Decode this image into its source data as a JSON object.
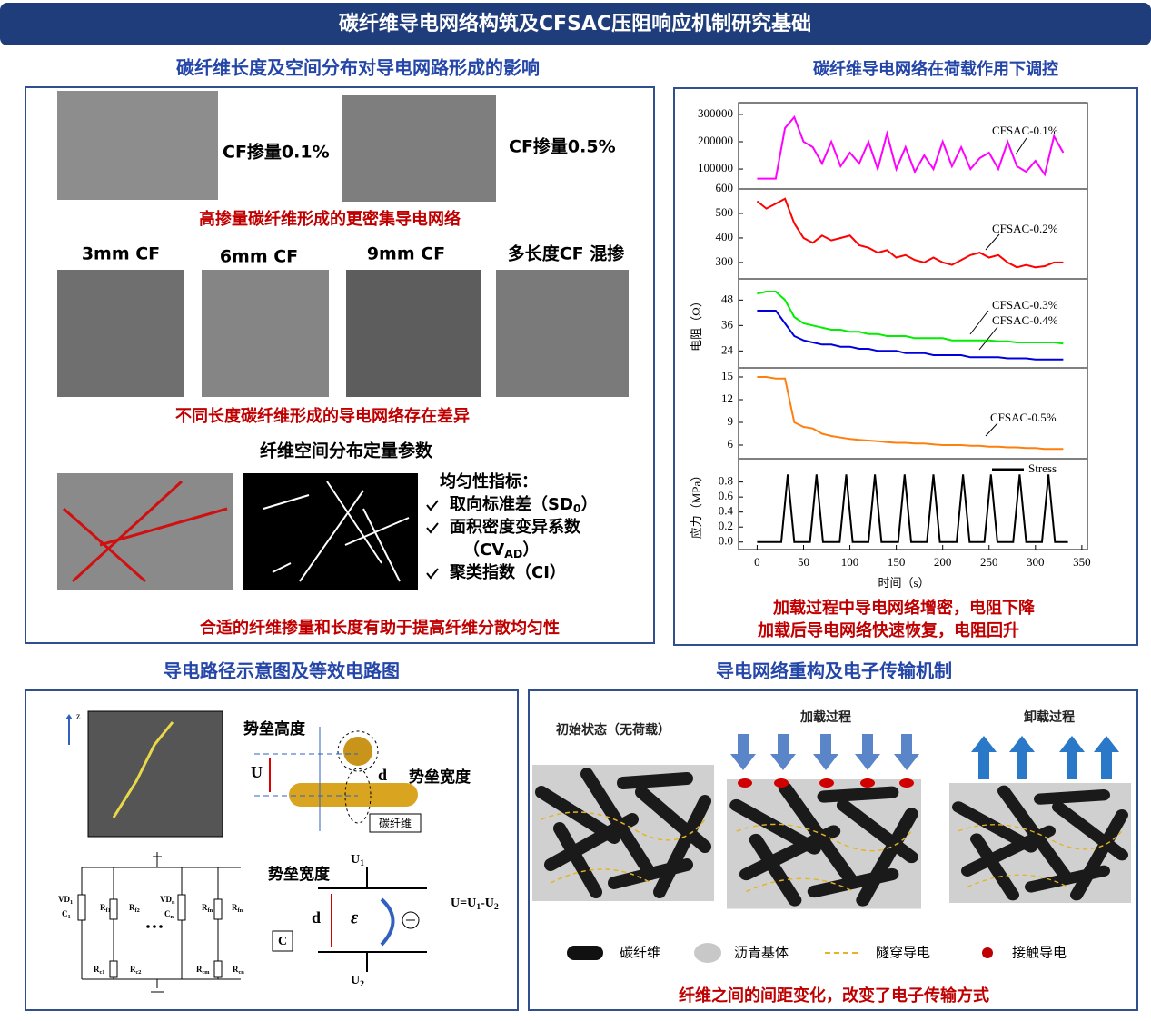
{
  "header": {
    "title": "碳纤维导电网络构筑及CFSAC压阻响应机制研究基础"
  },
  "panel_a": {
    "title": "碳纤维长度及空间分布对导电网路形成的影响",
    "dosage_labels": [
      "CF掺量0.1%",
      "CF掺量0.5%"
    ],
    "caption_dosage": "高掺量碳纤维形成的更密集导电网络",
    "length_labels": [
      "3mm CF",
      "6mm CF",
      "9mm CF",
      "多长度CF 混掺"
    ],
    "caption_length": "不同长度碳纤维形成的导电网络存在差异",
    "subtitle": "纤维空间分布定量参数",
    "index_title": "均匀性指标：",
    "indices": [
      {
        "text": "取向标准差（SD",
        "sub": "0",
        "tail": "）"
      },
      {
        "text": "面积密度变异系数",
        "sub": "",
        "tail": ""
      },
      {
        "text": "（CV",
        "sub": "AD",
        "tail": "）"
      },
      {
        "text": "聚类指数（CI）",
        "sub": "",
        "tail": ""
      }
    ],
    "caption_uniform": "合适的纤维掺量和长度有助于提高纤维分散均匀性"
  },
  "panel_b": {
    "title": "碳纤维导电网络在荷载作用下调控",
    "captions": [
      "加载过程中导电网络增密，电阻下降",
      "加载后导电网络快速恢复，电阻回升"
    ]
  },
  "chart_data": [
    {
      "type": "line",
      "x": [
        0,
        10,
        20,
        30,
        40,
        50,
        60,
        70,
        80,
        90,
        100,
        110,
        120,
        130,
        140,
        150,
        160,
        170,
        180,
        190,
        200,
        210,
        220,
        230,
        240,
        250,
        260,
        270,
        280,
        290,
        300,
        310,
        320,
        330
      ],
      "xlim": [
        -20,
        356
      ],
      "ylim": [
        27000,
        343000
      ],
      "yticks": [
        100000,
        200000,
        300000
      ],
      "series": [
        {
          "name": "CFSAC-0.1%",
          "color": "#ff00ff",
          "values": [
            65000,
            65000,
            65000,
            250000,
            290000,
            200000,
            180000,
            120000,
            200000,
            110000,
            160000,
            120000,
            200000,
            100000,
            230000,
            100000,
            180000,
            90000,
            150000,
            100000,
            200000,
            110000,
            180000,
            100000,
            140000,
            160000,
            100000,
            200000,
            110000,
            90000,
            130000,
            80000,
            220000,
            160000
          ]
        }
      ]
    },
    {
      "type": "line",
      "x": [
        0,
        10,
        20,
        30,
        40,
        50,
        60,
        70,
        80,
        90,
        100,
        110,
        120,
        130,
        140,
        150,
        160,
        170,
        180,
        190,
        200,
        210,
        220,
        230,
        240,
        250,
        260,
        270,
        280,
        290,
        300,
        310,
        320,
        330
      ],
      "xlim": [
        -20,
        356
      ],
      "ylim": [
        233,
        600
      ],
      "yticks": [
        300,
        400,
        500,
        600
      ],
      "series": [
        {
          "name": "CFSAC-0.2%",
          "color": "#ff0000",
          "values": [
            550,
            520,
            540,
            560,
            460,
            400,
            380,
            410,
            390,
            400,
            410,
            370,
            360,
            340,
            350,
            320,
            330,
            310,
            300,
            320,
            300,
            290,
            310,
            330,
            340,
            320,
            330,
            300,
            280,
            290,
            280,
            285,
            300,
            300
          ]
        }
      ]
    },
    {
      "type": "line",
      "x": [
        0,
        10,
        20,
        30,
        40,
        50,
        60,
        70,
        80,
        90,
        100,
        110,
        120,
        130,
        140,
        150,
        160,
        170,
        180,
        190,
        200,
        210,
        220,
        230,
        240,
        250,
        260,
        270,
        280,
        290,
        300,
        310,
        320,
        330
      ],
      "xlim": [
        -20,
        356
      ],
      "ylim": [
        16,
        58
      ],
      "yticks": [
        24,
        36,
        48
      ],
      "ylabel": "电阻（Ω）",
      "series": [
        {
          "name": "CFSAC-0.3%",
          "color": "#00ee00",
          "values": [
            51,
            52,
            52,
            48,
            40,
            37,
            36,
            35,
            34,
            34,
            33,
            33,
            32,
            32,
            31,
            31,
            31,
            30,
            30,
            30,
            30,
            29,
            29,
            29,
            29,
            29,
            28.5,
            28.5,
            28,
            28,
            28,
            28,
            28,
            27.5
          ]
        },
        {
          "name": "CFSAC-0.4%",
          "color": "#0000dd",
          "values": [
            43,
            43,
            43,
            37,
            31,
            29,
            28,
            27,
            27,
            26,
            26,
            25,
            25,
            24,
            24,
            24,
            23,
            23,
            23,
            22,
            22,
            22,
            22,
            21,
            21,
            21,
            21,
            20.5,
            20.5,
            20.5,
            20,
            20,
            20,
            20
          ]
        }
      ]
    },
    {
      "type": "line",
      "x": [
        0,
        10,
        20,
        30,
        40,
        50,
        60,
        70,
        80,
        90,
        100,
        110,
        120,
        130,
        140,
        150,
        160,
        170,
        180,
        190,
        200,
        210,
        220,
        230,
        240,
        250,
        260,
        270,
        280,
        290,
        300,
        310,
        320,
        330
      ],
      "xlim": [
        -20,
        356
      ],
      "ylim": [
        4.2,
        16.2
      ],
      "yticks": [
        6,
        9,
        12,
        15
      ],
      "series": [
        {
          "name": "CFSAC-0.5%",
          "color": "#ff7f0e",
          "values": [
            15,
            15,
            14.8,
            14.8,
            9,
            8.4,
            8.2,
            7.5,
            7.2,
            7,
            6.8,
            6.7,
            6.6,
            6.5,
            6.4,
            6.3,
            6.3,
            6.2,
            6.2,
            6.1,
            6,
            6,
            6,
            5.9,
            5.9,
            5.8,
            5.8,
            5.7,
            5.7,
            5.6,
            5.6,
            5.5,
            5.5,
            5.5
          ]
        }
      ]
    },
    {
      "type": "line",
      "x": [
        0,
        26,
        33,
        40,
        57,
        64,
        71,
        89,
        96,
        103,
        120,
        127,
        134,
        152,
        159,
        166,
        183,
        190,
        197,
        215,
        222,
        229,
        245,
        252,
        259,
        276,
        283,
        290,
        307,
        314,
        321,
        335
      ],
      "xlim": [
        -20,
        356
      ],
      "xticks": [
        0,
        50,
        100,
        150,
        200,
        250,
        300,
        350
      ],
      "xlabel": "时间（s）",
      "ylim": [
        -0.1,
        1.11
      ],
      "yticks": [
        {
          "value": 0,
          "label": "0.0"
        },
        0.2,
        0.4,
        0.6,
        0.8
      ],
      "ylabel": "应力（MPa）",
      "legend": "upper right",
      "series": [
        {
          "name": "Stress",
          "color": "#000000",
          "values": [
            0,
            0,
            0.9,
            0,
            0,
            0.9,
            0,
            0,
            0.9,
            0,
            0,
            0.9,
            0,
            0,
            0.9,
            0,
            0,
            0.9,
            0,
            0,
            0.9,
            0,
            0,
            0.9,
            0,
            0,
            0.9,
            0,
            0,
            0.9,
            0,
            0
          ]
        }
      ]
    }
  ],
  "panel_c": {
    "title": "导电路径示意图及等效电路图",
    "z": "z",
    "barrier_height": "势垒高度",
    "u": "U",
    "d": "d",
    "barrier_width": "势垒宽度",
    "fiber": "碳纤维",
    "barrier_width2": "势垒宽度",
    "u1": {
      "text": "U",
      "sub": "1"
    },
    "u2": {
      "text": "U",
      "sub": "2"
    },
    "d2": "d",
    "epsilon": "ε",
    "equation": [
      {
        "text": "U=U",
        "sub": "1"
      },
      {
        "text": "-U",
        "sub": "2"
      }
    ],
    "c": "C",
    "circuit": [
      {
        "text": "VD",
        "sub": "1"
      },
      {
        "text": "C",
        "sub": "1"
      },
      {
        "text": "R",
        "sub": "f1"
      },
      {
        "text": "R",
        "sub": "c1"
      },
      {
        "text": "R",
        "sub": "f2"
      },
      {
        "text": "R",
        "sub": "c2"
      },
      {
        "text": "VD",
        "sub": "n"
      },
      {
        "text": "C",
        "sub": "n"
      },
      {
        "text": "R",
        "sub": "fn"
      },
      {
        "text": "R",
        "sub": "cm"
      },
      {
        "text": "R",
        "sub": "fn"
      },
      {
        "text": "R",
        "sub": "cn"
      }
    ]
  },
  "panel_d": {
    "title": "导电网络重构及电子传输机制",
    "stages": [
      "初始状态（无荷载）",
      "加载过程",
      "卸载过程"
    ],
    "legend": [
      "碳纤维",
      "沥青基体",
      "隧穿导电",
      "接触导电"
    ],
    "caption": "纤维之间的间距变化，改变了电子传输方式"
  }
}
